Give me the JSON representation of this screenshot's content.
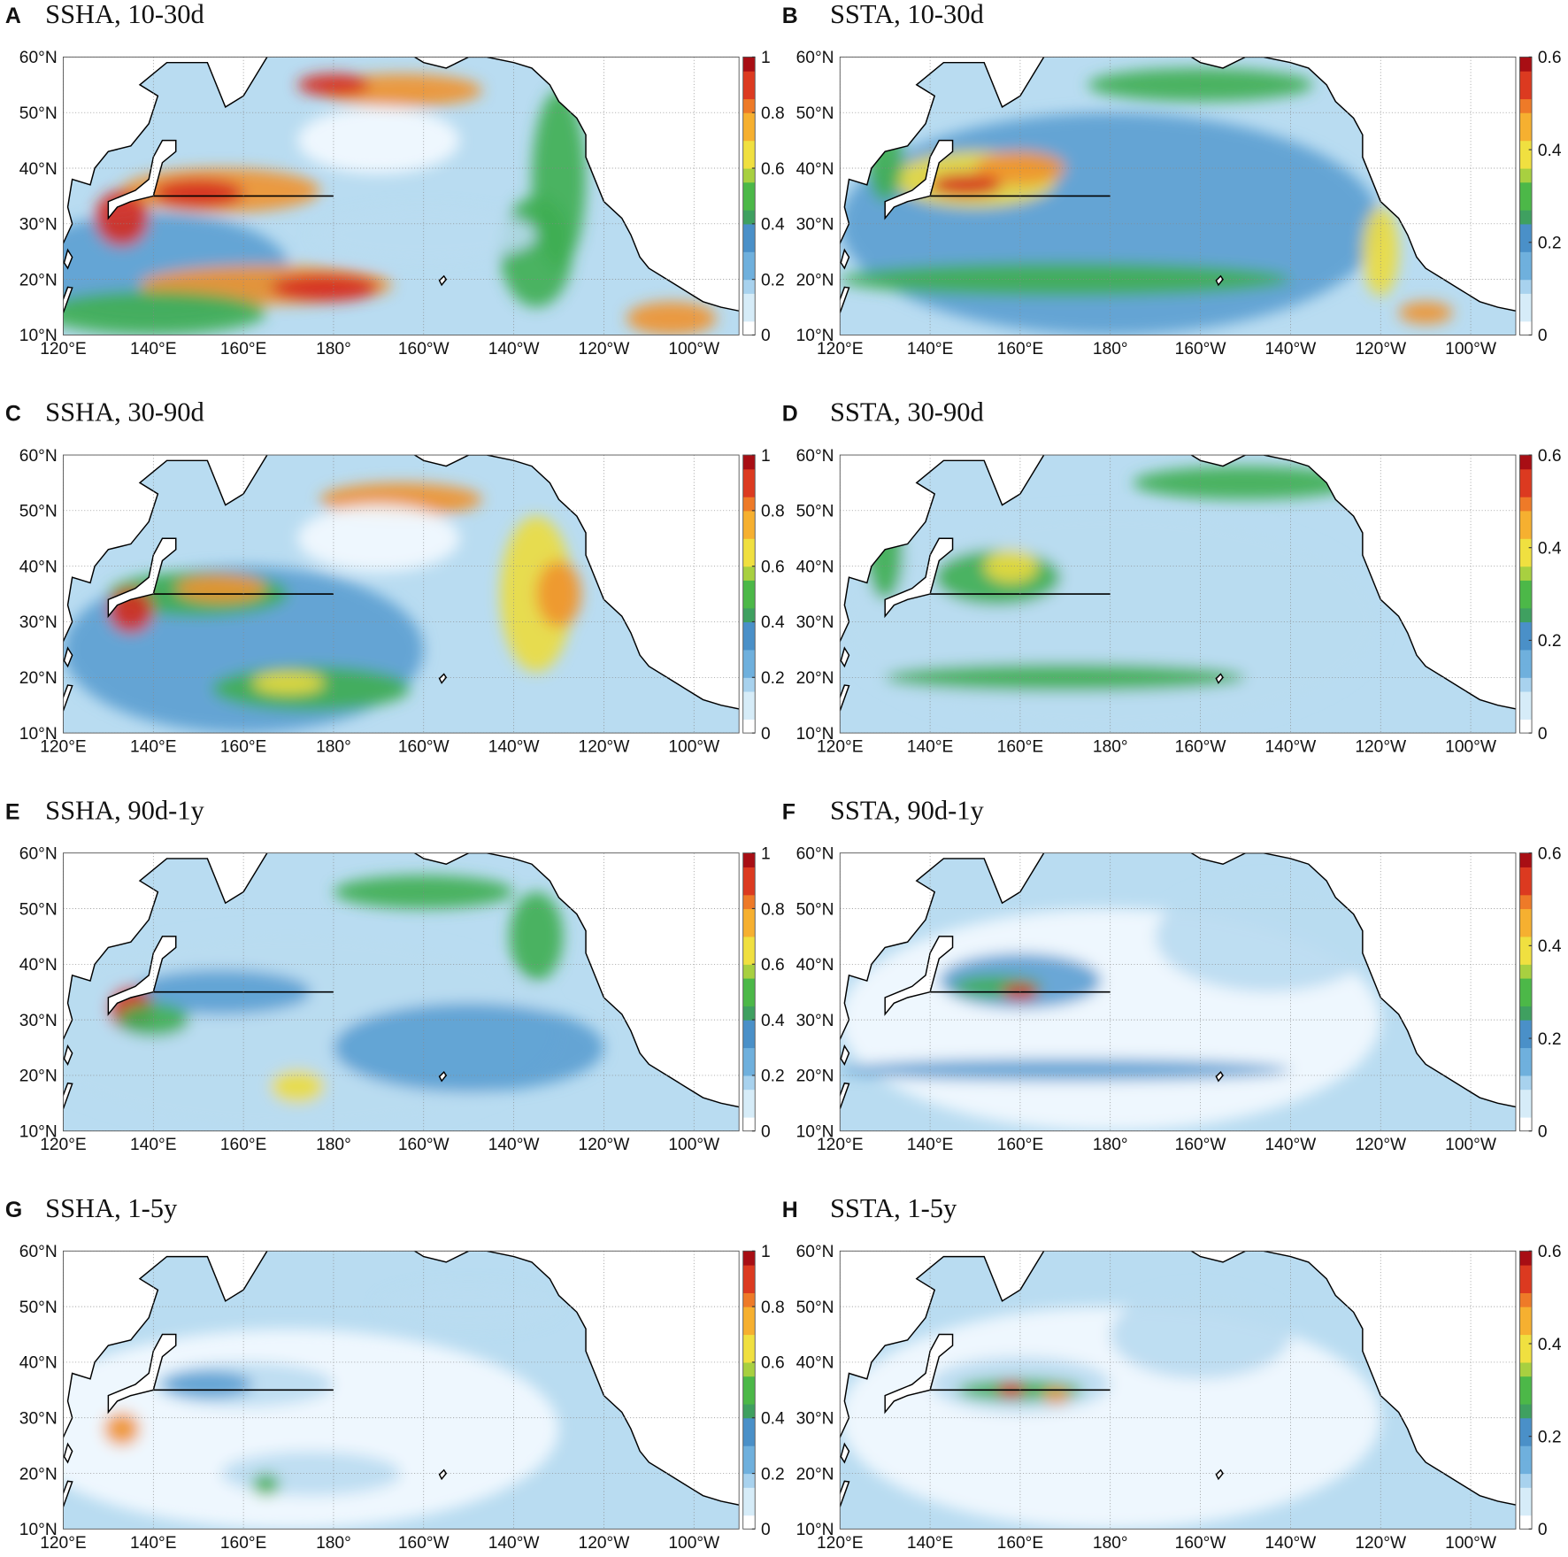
{
  "panels": [
    {
      "letter": "A",
      "title": "SSHA, 10-30d",
      "colorbar": {
        "lim": [
          0,
          1
        ],
        "ticks": [
          0,
          0.2,
          0.4,
          0.6,
          0.8,
          1
        ]
      }
    },
    {
      "letter": "B",
      "title": "SSTA, 10-30d",
      "colorbar": {
        "lim": [
          0,
          0.6
        ],
        "ticks": [
          0,
          0.2,
          0.4,
          0.6
        ]
      }
    },
    {
      "letter": "C",
      "title": "SSHA, 30-90d",
      "colorbar": {
        "lim": [
          0,
          1
        ],
        "ticks": [
          0,
          0.2,
          0.4,
          0.6,
          0.8,
          1
        ]
      }
    },
    {
      "letter": "D",
      "title": "SSTA, 30-90d",
      "colorbar": {
        "lim": [
          0,
          0.6
        ],
        "ticks": [
          0,
          0.2,
          0.4,
          0.6
        ]
      }
    },
    {
      "letter": "E",
      "title": "SSHA, 90d-1y",
      "colorbar": {
        "lim": [
          0,
          1
        ],
        "ticks": [
          0,
          0.2,
          0.4,
          0.6,
          0.8,
          1
        ]
      }
    },
    {
      "letter": "F",
      "title": "SSTA, 90d-1y",
      "colorbar": {
        "lim": [
          0,
          0.6
        ],
        "ticks": [
          0,
          0.2,
          0.4,
          0.6
        ]
      }
    },
    {
      "letter": "G",
      "title": "SSHA, 1-5y",
      "colorbar": {
        "lim": [
          0,
          1
        ],
        "ticks": [
          0,
          0.2,
          0.4,
          0.6,
          0.8,
          1
        ]
      }
    },
    {
      "letter": "H",
      "title": "SSTA, 1-5y",
      "colorbar": {
        "lim": [
          0,
          0.6
        ],
        "ticks": [
          0,
          0.2,
          0.4,
          0.6
        ]
      }
    }
  ],
  "lat_lim": [
    10,
    60
  ],
  "lat_ticks": [
    {
      "value": 10,
      "label": "10°N"
    },
    {
      "value": 20,
      "label": "20°N"
    },
    {
      "value": 30,
      "label": "30°N"
    },
    {
      "value": 40,
      "label": "40°N"
    },
    {
      "value": 50,
      "label": "50°N"
    },
    {
      "value": 60,
      "label": "60°N"
    }
  ],
  "lon_lim": [
    120,
    270
  ],
  "lon_ticks": [
    {
      "value": 120,
      "label": "120°E"
    },
    {
      "value": 140,
      "label": "140°E"
    },
    {
      "value": 160,
      "label": "160°E"
    },
    {
      "value": 180,
      "label": "180°"
    },
    {
      "value": 200,
      "label": "160°W"
    },
    {
      "value": 220,
      "label": "140°W"
    },
    {
      "value": 240,
      "label": "120°W"
    },
    {
      "value": 260,
      "label": "100°W"
    }
  ]
}
